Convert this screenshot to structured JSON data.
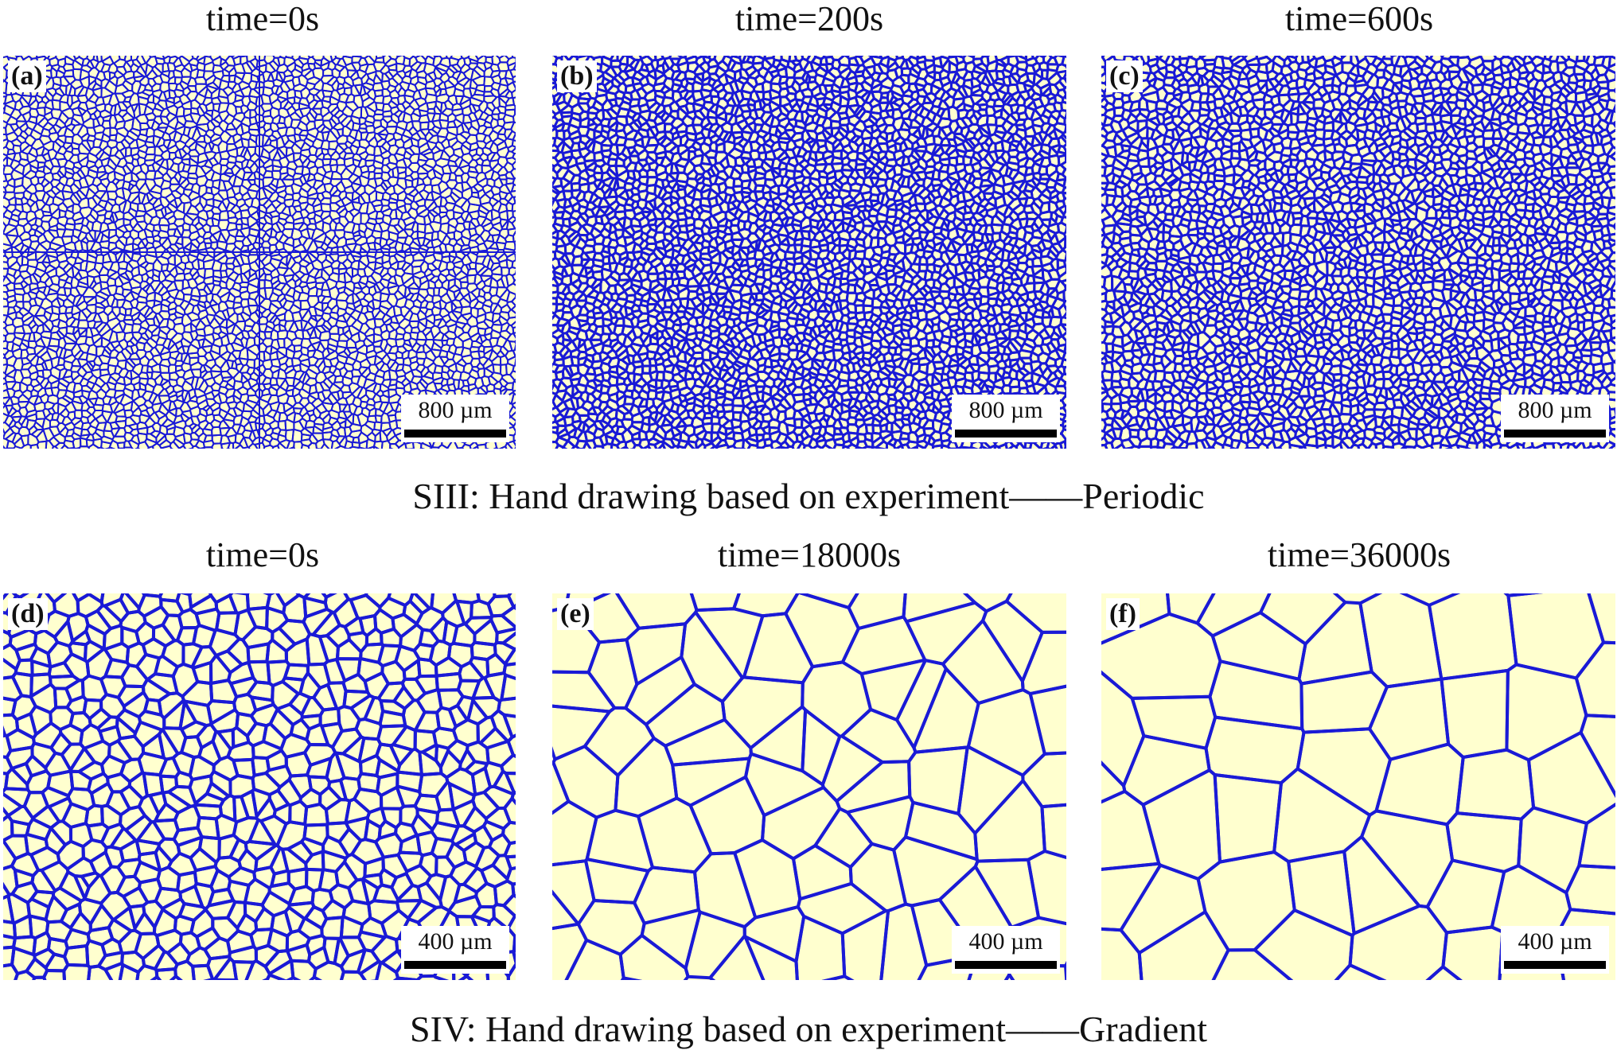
{
  "top_row": {
    "caption": "SIII: Hand drawing based on experiment——Periodic",
    "panels": [
      {
        "letter": "(a)",
        "time": "time=0s",
        "scale": "800 µm"
      },
      {
        "letter": "(b)",
        "time": "time=200s",
        "scale": "800 µm"
      },
      {
        "letter": "(c)",
        "time": "time=600s",
        "scale": "800 µm"
      }
    ]
  },
  "bottom_row": {
    "caption": "SIV: Hand drawing based on experiment——Gradient",
    "panels": [
      {
        "letter": "(d)",
        "time": "time=0s",
        "scale": "400 µm"
      },
      {
        "letter": "(e)",
        "time": "time=18000s",
        "scale": "400 µm"
      },
      {
        "letter": "(f)",
        "time": "time=36000s",
        "scale": "400 µm"
      }
    ]
  },
  "colors": {
    "grain_fill": "#ffffcf",
    "grain_boundary": "#1a1ad6",
    "scale_bar": "#000000"
  }
}
